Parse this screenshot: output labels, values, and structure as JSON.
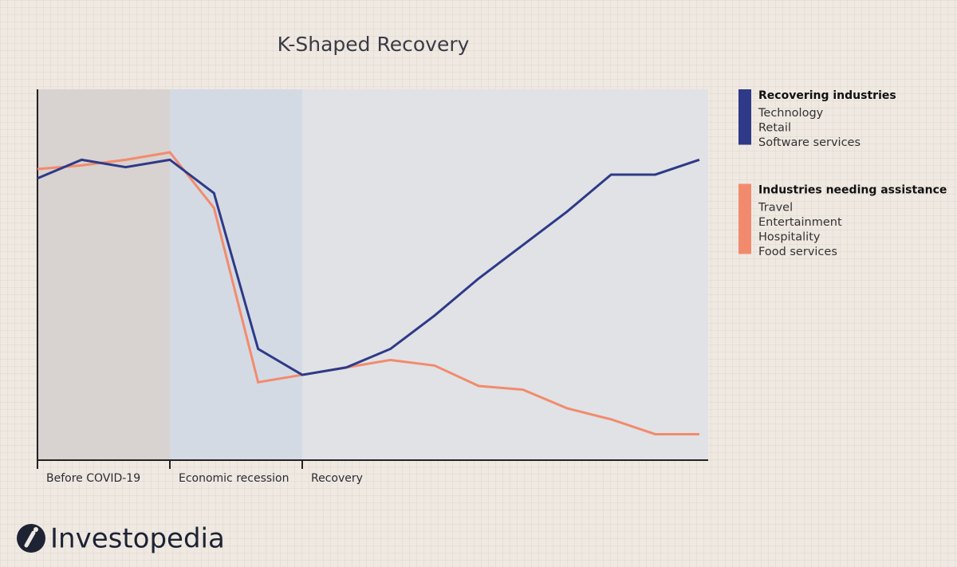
{
  "chart_data": {
    "type": "line",
    "title": "K-Shaped Recovery",
    "x": [
      0,
      1,
      2,
      3,
      4,
      5,
      6,
      7,
      8,
      9,
      10,
      11,
      12,
      13,
      14,
      15
    ],
    "xlim": [
      0,
      15.2
    ],
    "ylim": [
      0,
      100
    ],
    "phases": [
      {
        "label": "Before COVID-19",
        "start": 0,
        "end": 3,
        "color": "#d8d2d0"
      },
      {
        "label": "Economic recession",
        "start": 3,
        "end": 6,
        "color": "#d4dae4"
      },
      {
        "label": "Recovery",
        "start": 6,
        "end": 15.2,
        "color": "#e0e2e6"
      }
    ],
    "series": [
      {
        "name": "Recovering industries",
        "color": "#2e3a87",
        "items": [
          "Technology",
          "Retail",
          "Software services"
        ],
        "values": [
          76,
          81,
          79,
          81,
          72,
          30,
          23,
          25,
          30,
          39,
          49,
          58,
          67,
          77,
          77,
          81
        ]
      },
      {
        "name": "Industries needing assistance",
        "color": "#f28b6d",
        "items": [
          "Travel",
          "Entertainment",
          "Hospitality",
          "Food services"
        ],
        "values": [
          78.5,
          79.5,
          81,
          83,
          68,
          21,
          23,
          25,
          27,
          25.5,
          20,
          19,
          14,
          11,
          7,
          7
        ]
      }
    ]
  },
  "logo": "Investopedia"
}
